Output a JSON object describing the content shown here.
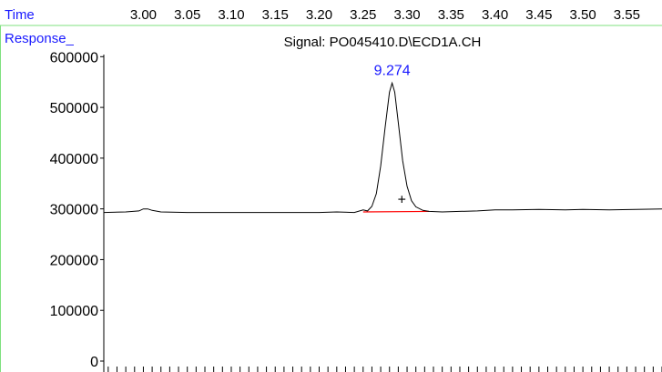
{
  "header": {
    "time_label": "Time",
    "response_label": "Response_",
    "signal_title": "Signal: PO045410.D\\ECD1A.CH"
  },
  "colors": {
    "label_blue": "#1a1aff",
    "frame_green": "#7fe07f",
    "trace": "#000000",
    "baseline_red": "#ff0000",
    "tick_text": "#000000"
  },
  "chart_data": {
    "type": "line",
    "title": "Signal: PO045410.D\\ECD1A.CH",
    "xlabel": "Time",
    "ylabel": "Response_",
    "xlim": [
      2.955,
      3.59
    ],
    "ylim": [
      0,
      640000
    ],
    "x_ticks": [
      "3.00",
      "3.05",
      "3.10",
      "3.15",
      "3.20",
      "3.25",
      "3.30",
      "3.35",
      "3.40",
      "3.45",
      "3.50",
      "3.55"
    ],
    "y_ticks": [
      "0",
      "100000",
      "200000",
      "300000",
      "400000",
      "500000",
      "600000"
    ],
    "grid": false,
    "series": [
      {
        "points": [
          [
            2.955,
            293000
          ],
          [
            2.98,
            294000
          ],
          [
            2.995,
            296000
          ],
          [
            3.0,
            300000
          ],
          [
            3.005,
            300000
          ],
          [
            3.01,
            297000
          ],
          [
            3.02,
            294000
          ],
          [
            3.05,
            293000
          ],
          [
            3.1,
            293000
          ],
          [
            3.15,
            293000
          ],
          [
            3.2,
            293000
          ],
          [
            3.22,
            294000
          ],
          [
            3.24,
            293000
          ],
          [
            3.25,
            298000
          ],
          [
            3.255,
            296000
          ],
          [
            3.26,
            305000
          ],
          [
            3.265,
            330000
          ],
          [
            3.27,
            385000
          ],
          [
            3.275,
            460000
          ],
          [
            3.28,
            530000
          ],
          [
            3.283,
            548000
          ],
          [
            3.286,
            530000
          ],
          [
            3.29,
            470000
          ],
          [
            3.295,
            395000
          ],
          [
            3.3,
            345000
          ],
          [
            3.305,
            316000
          ],
          [
            3.31,
            304000
          ],
          [
            3.318,
            297000
          ],
          [
            3.325,
            295000
          ],
          [
            3.34,
            294000
          ],
          [
            3.36,
            295000
          ],
          [
            3.38,
            296000
          ],
          [
            3.4,
            298000
          ],
          [
            3.42,
            298000
          ],
          [
            3.45,
            299000
          ],
          [
            3.48,
            298000
          ],
          [
            3.5,
            299000
          ],
          [
            3.53,
            298000
          ],
          [
            3.56,
            299000
          ],
          [
            3.59,
            300000
          ]
        ]
      }
    ],
    "baseline": {
      "from": [
        3.25,
        294000
      ],
      "to": [
        3.325,
        295000
      ]
    },
    "peak_label": {
      "text": "9.274",
      "x": 3.283,
      "y": 548000
    },
    "marker": {
      "symbol": "+",
      "x": 3.294,
      "y": 318000
    }
  }
}
